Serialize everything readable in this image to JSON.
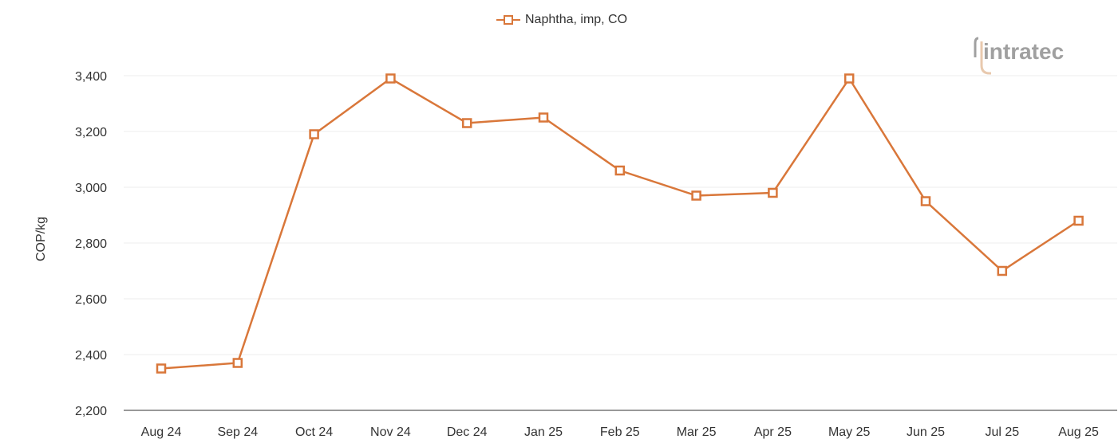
{
  "legend": {
    "label": "Naphtha, imp, CO",
    "color": "#D9773A"
  },
  "logo": {
    "text": "intratec"
  },
  "colors": {
    "line": "#D9773A",
    "marker_fill": "#FFFFFF",
    "grid": "#EEEEEE",
    "axis": "#333333",
    "logo": "#A0A0A0",
    "logo_accent": "#E8C9AE"
  },
  "chart_data": {
    "type": "line",
    "title": "",
    "xlabel": "",
    "ylabel": "COP/kg",
    "categories": [
      "Aug 24",
      "Sep 24",
      "Oct 24",
      "Nov 24",
      "Dec 24",
      "Jan 25",
      "Feb 25",
      "Mar 25",
      "Apr 25",
      "May 25",
      "Jun 25",
      "Jul 25",
      "Aug 25"
    ],
    "series": [
      {
        "name": "Naphtha, imp, CO",
        "values": [
          2350,
          2370,
          3190,
          3390,
          3230,
          3250,
          3060,
          2970,
          2980,
          3390,
          2950,
          2700,
          2880
        ]
      }
    ],
    "ylim": [
      2200,
      3400
    ],
    "yticks": [
      2200,
      2400,
      2600,
      2800,
      3000,
      3200,
      3400
    ],
    "ytick_labels": [
      "2,200",
      "2,400",
      "2,600",
      "2,800",
      "3,000",
      "3,200",
      "3,400"
    ],
    "grid": true,
    "legend_position": "top-center",
    "marker": "square-open"
  }
}
